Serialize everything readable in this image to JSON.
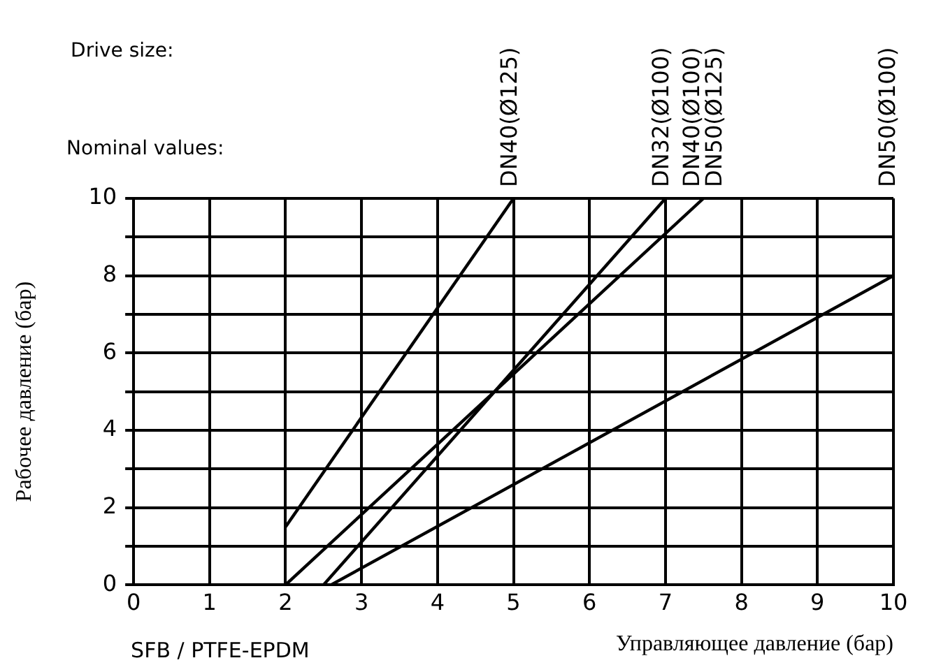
{
  "chart_data": {
    "type": "line",
    "xlabel": "Управляющее давление (бар)",
    "ylabel": "Рабочее давление (бар)",
    "xlim": [
      0,
      10
    ],
    "ylim": [
      0,
      10
    ],
    "xticks": [
      0,
      1,
      2,
      3,
      4,
      5,
      6,
      7,
      8,
      9,
      10
    ],
    "yticks": [
      0,
      {
        "value": 1,
        "label": null
      },
      2,
      {
        "value": 3,
        "label": null
      },
      4,
      {
        "value": 5,
        "label": null
      },
      6,
      {
        "value": 7,
        "label": null
      },
      8,
      {
        "value": 9,
        "label": null
      },
      10
    ],
    "grid": true,
    "legend": false,
    "marker": "none",
    "line_style": "solid",
    "series": [
      {
        "color": "#000000",
        "x": [
          2,
          5
        ],
        "values": [
          1.5,
          10
        ]
      },
      {
        "color": "#000000",
        "x": [
          2.5,
          7
        ],
        "values": [
          0,
          10
        ]
      },
      {
        "color": "#000000",
        "x": [
          2,
          7.5
        ],
        "values": [
          0,
          10
        ]
      },
      {
        "color": "#000000",
        "x": [
          2.6,
          10
        ],
        "values": [
          0,
          8
        ]
      }
    ],
    "annotations": [
      "Drive size:",
      "Nominal values:",
      "SFB / PTFE-EPDM",
      "DN40(Ø125)",
      "DN32(Ø100)",
      "DN40(Ø100)",
      "DN50(Ø125)",
      "DN50(Ø100)"
    ]
  }
}
